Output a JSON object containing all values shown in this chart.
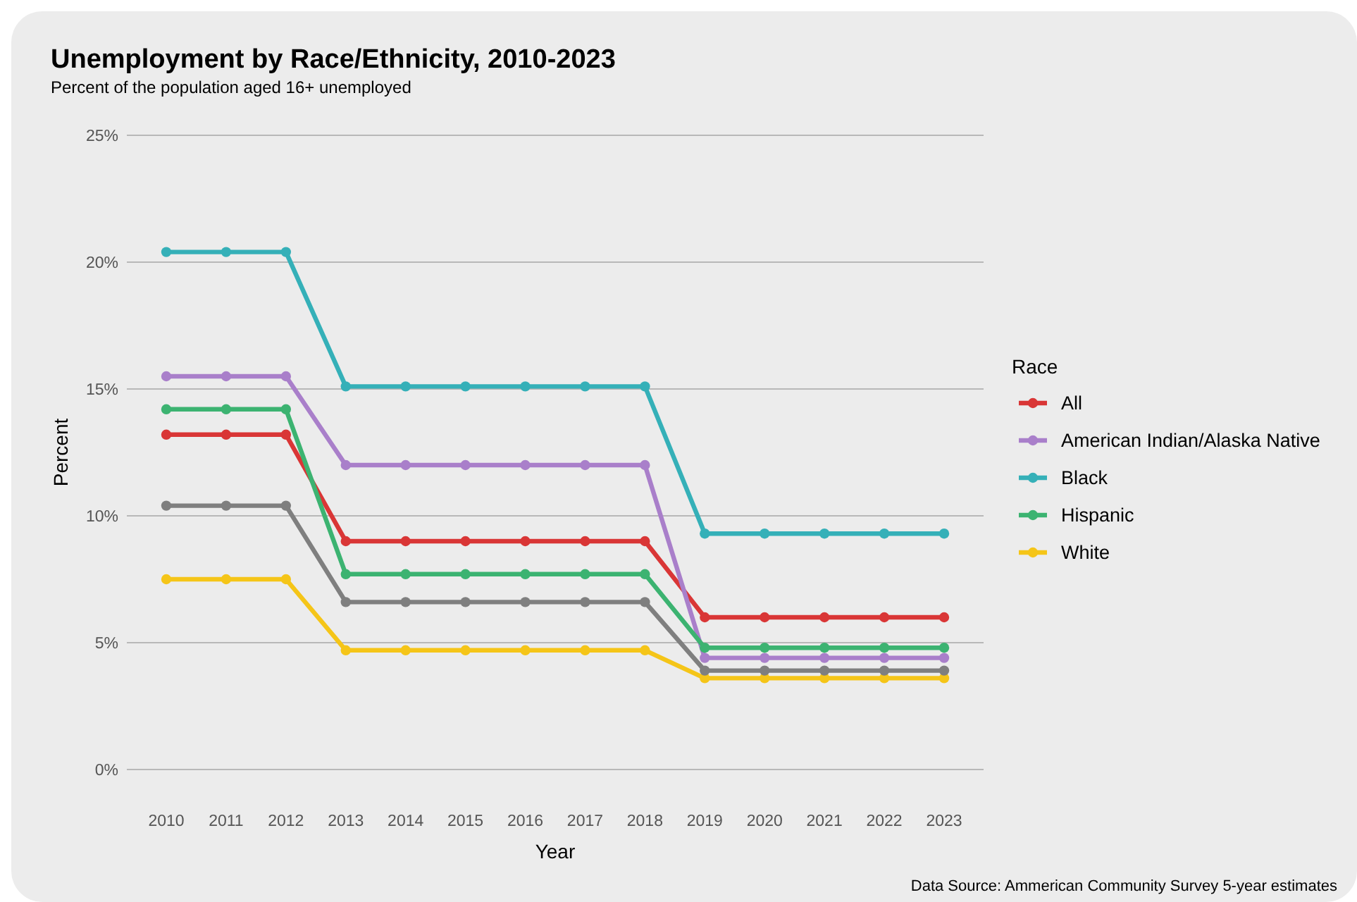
{
  "chart_data": {
    "type": "line",
    "title": "Unemployment by Race/Ethnicity, 2010-2023",
    "subtitle": "Percent of the population aged 16+ unemployed",
    "xlabel": "Year",
    "ylabel": "Percent",
    "legend_title": "Race",
    "legend": "right",
    "grid": "y",
    "marker": "circle",
    "line_style": "solid",
    "categories": [
      "2010",
      "2011",
      "2012",
      "2013",
      "2014",
      "2015",
      "2016",
      "2017",
      "2018",
      "2019",
      "2020",
      "2021",
      "2022",
      "2023"
    ],
    "ylim": [
      0,
      25
    ],
    "yticks": [
      {
        "value": 0,
        "label": "0%"
      },
      {
        "value": 5,
        "label": "5%"
      },
      {
        "value": 10,
        "label": "10%"
      },
      {
        "value": 15,
        "label": "15%"
      },
      {
        "value": 20,
        "label": "20%"
      },
      {
        "value": 25,
        "label": "25%"
      }
    ],
    "series": [
      {
        "name": "All",
        "color": "#d93636",
        "values": [
          13.2,
          13.2,
          13.2,
          9.0,
          9.0,
          9.0,
          9.0,
          9.0,
          9.0,
          6.0,
          6.0,
          6.0,
          6.0,
          6.0
        ]
      },
      {
        "name": "American Indian/Alaska Native",
        "color": "#a97fca",
        "values": [
          15.5,
          15.5,
          15.5,
          12.0,
          12.0,
          12.0,
          12.0,
          12.0,
          12.0,
          4.4,
          4.4,
          4.4,
          4.4,
          4.4
        ]
      },
      {
        "name": "Black",
        "color": "#35b0b8",
        "values": [
          20.4,
          20.4,
          20.4,
          15.1,
          15.1,
          15.1,
          15.1,
          15.1,
          15.1,
          9.3,
          9.3,
          9.3,
          9.3,
          9.3
        ]
      },
      {
        "name": "Hispanic",
        "color": "#3cb371",
        "values": [
          14.2,
          14.2,
          14.2,
          7.7,
          7.7,
          7.7,
          7.7,
          7.7,
          7.7,
          4.8,
          4.8,
          4.8,
          4.8,
          4.8
        ]
      },
      {
        "name": "White",
        "color": "#f5c518",
        "values": [
          7.5,
          7.5,
          7.5,
          4.7,
          4.7,
          4.7,
          4.7,
          4.7,
          4.7,
          3.6,
          3.6,
          3.6,
          3.6,
          3.6
        ]
      },
      {
        "color": "#7f7f7f",
        "values": [
          10.4,
          10.4,
          10.4,
          6.6,
          6.6,
          6.6,
          6.6,
          6.6,
          6.6,
          3.9,
          3.9,
          3.9,
          3.9,
          3.9
        ]
      }
    ],
    "annotations": [
      "Data Source: Ammerican Community Survey 5-year estimates"
    ]
  }
}
